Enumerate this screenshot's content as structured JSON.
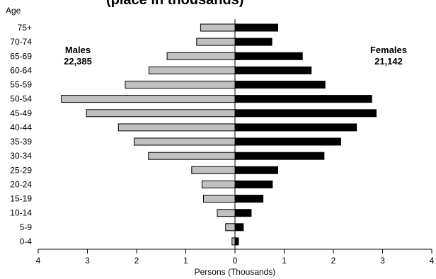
{
  "header": {
    "clipped_title": "(place in thousands)"
  },
  "chart_data": {
    "type": "bar",
    "orientation": "horizontal-population-pyramid",
    "ylabel": "Age",
    "xlabel": "Persons (Thousands)",
    "categories": [
      "75+",
      "70-74",
      "65-69",
      "60-64",
      "55-59",
      "50-54",
      "45-49",
      "40-44",
      "35-39",
      "30-34",
      "25-29",
      "20-24",
      "15-19",
      "10-14",
      "5-9",
      "0-4"
    ],
    "series": [
      {
        "name": "Males",
        "total": "22,385",
        "color": "#c0c0c0",
        "values": [
          0.7,
          0.78,
          1.38,
          1.75,
          2.23,
          3.53,
          3.02,
          2.37,
          2.05,
          1.76,
          0.88,
          0.67,
          0.64,
          0.36,
          0.19,
          0.06
        ]
      },
      {
        "name": "Females",
        "total": "21,142",
        "color": "#000000",
        "values": [
          0.87,
          0.75,
          1.37,
          1.55,
          1.83,
          2.78,
          2.87,
          2.47,
          2.15,
          1.81,
          0.87,
          0.76,
          0.57,
          0.33,
          0.17,
          0.07
        ]
      }
    ],
    "xlim": [
      -4,
      4
    ],
    "xticks": [
      "4",
      "3",
      "2",
      "1",
      "0",
      "1",
      "2",
      "3",
      "4"
    ],
    "grid": false
  }
}
